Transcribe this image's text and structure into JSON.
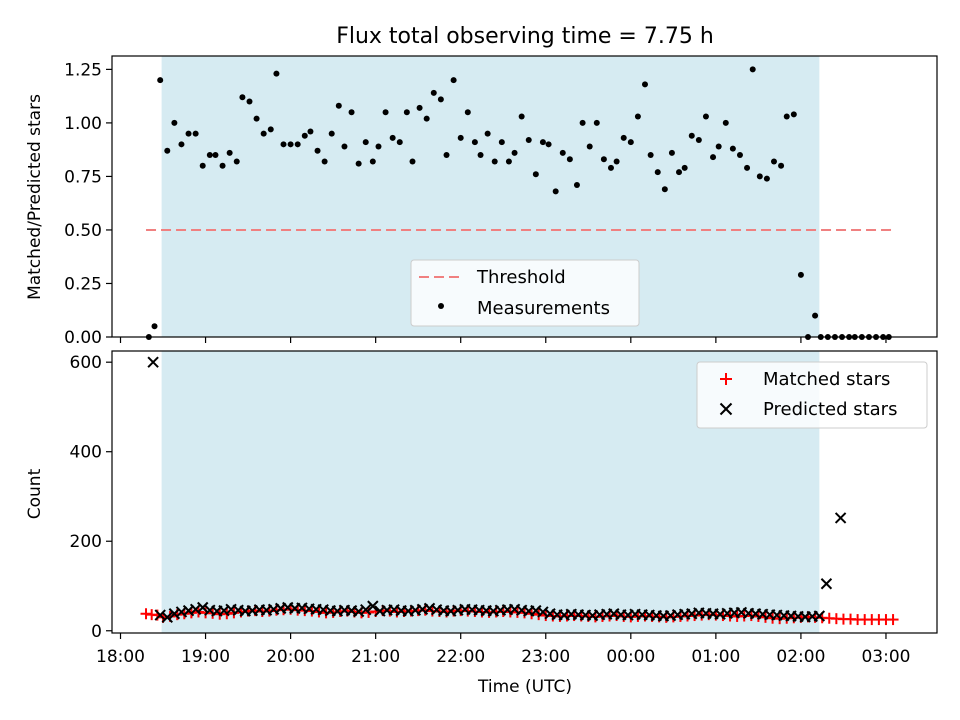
{
  "title": "Flux total observing time = 7.75 h",
  "colors": {
    "shade": "#add8e6",
    "threshold": "#f08080",
    "points": "#000000",
    "matched": "#ff0000",
    "predicted": "#000000"
  },
  "chart_data": [
    {
      "type": "scatter",
      "id": "ratio",
      "ylabel": "Matched/Predicted stars",
      "xlabel": "",
      "ylim": [
        0,
        1.3125
      ],
      "xlim_hours": [
        17.9,
        27.6
      ],
      "yticks": [
        0,
        0.25,
        0.5,
        0.75,
        1.0,
        1.25
      ],
      "ytick_labels": [
        "0.00",
        "0.25",
        "0.50",
        "0.75",
        "1.00",
        "1.25"
      ],
      "grid": false,
      "shaded_span": {
        "start": "18:29",
        "end": "02:13"
      },
      "threshold": {
        "label": "Threshold",
        "value": 0.5,
        "x_start": "18:18",
        "x_end": "03:06"
      },
      "legend": {
        "position": "lower-center",
        "entries": [
          "Threshold",
          "Measurements"
        ]
      },
      "series": [
        {
          "name": "Measurements",
          "x": [
            "18:20",
            "18:24",
            "18:28",
            "18:33",
            "18:38",
            "18:43",
            "18:48",
            "18:53",
            "18:58",
            "19:03",
            "19:07",
            "19:12",
            "19:17",
            "19:22",
            "19:26",
            "19:31",
            "19:36",
            "19:41",
            "19:46",
            "19:50",
            "19:55",
            "20:00",
            "20:05",
            "20:10",
            "20:14",
            "20:19",
            "20:24",
            "20:29",
            "20:34",
            "20:38",
            "20:43",
            "20:48",
            "20:53",
            "20:58",
            "21:02",
            "21:07",
            "21:12",
            "21:17",
            "21:22",
            "21:26",
            "21:31",
            "21:36",
            "21:41",
            "21:46",
            "21:50",
            "21:55",
            "22:00",
            "22:05",
            "22:10",
            "22:14",
            "22:19",
            "22:24",
            "22:29",
            "22:34",
            "22:38",
            "22:43",
            "22:48",
            "22:53",
            "22:58",
            "23:02",
            "23:07",
            "23:12",
            "23:17",
            "23:22",
            "23:26",
            "23:31",
            "23:36",
            "23:41",
            "23:46",
            "23:50",
            "23:55",
            "00:00",
            "00:05",
            "00:10",
            "00:14",
            "00:19",
            "00:24",
            "00:29",
            "00:34",
            "00:38",
            "00:43",
            "00:48",
            "00:53",
            "00:58",
            "01:02",
            "01:07",
            "01:12",
            "01:17",
            "01:22",
            "01:26",
            "01:31",
            "01:36",
            "01:41",
            "01:46",
            "01:50",
            "01:55",
            "02:00",
            "02:05",
            "02:10",
            "02:14",
            "02:19",
            "02:24",
            "02:29",
            "02:34",
            "02:38",
            "02:43",
            "02:48",
            "02:53",
            "02:58",
            "03:02"
          ],
          "y": [
            0.0,
            0.05,
            1.2,
            0.87,
            1.0,
            0.9,
            0.95,
            0.95,
            0.8,
            0.85,
            0.85,
            0.8,
            0.86,
            0.82,
            1.12,
            1.1,
            1.02,
            0.95,
            0.97,
            1.23,
            0.9,
            0.9,
            0.9,
            0.94,
            0.96,
            0.87,
            0.82,
            0.95,
            1.08,
            0.89,
            1.05,
            0.81,
            0.91,
            0.82,
            0.89,
            1.05,
            0.93,
            0.91,
            1.05,
            0.82,
            1.07,
            1.02,
            1.14,
            1.11,
            0.85,
            1.2,
            0.93,
            1.05,
            0.91,
            0.85,
            0.95,
            0.82,
            0.91,
            0.82,
            0.86,
            1.03,
            0.92,
            0.76,
            0.91,
            0.9,
            0.68,
            0.86,
            0.83,
            0.71,
            1.0,
            0.89,
            1.0,
            0.83,
            0.79,
            0.82,
            0.93,
            0.91,
            1.03,
            1.18,
            0.85,
            0.77,
            0.69,
            0.86,
            0.77,
            0.79,
            0.94,
            0.92,
            1.03,
            0.84,
            0.89,
            1.0,
            0.88,
            0.85,
            0.79,
            1.25,
            0.75,
            0.74,
            0.82,
            0.8,
            1.03,
            1.04,
            0.29,
            0.0,
            0.1,
            0.0,
            0.0,
            0.0,
            0.0,
            0.0,
            0.0,
            0.0,
            0.0,
            0.0,
            0.0,
            0.0
          ]
        }
      ]
    },
    {
      "type": "scatter",
      "id": "counts",
      "ylabel": "Count",
      "xlabel": "Time (UTC)",
      "ylim": [
        -5,
        625
      ],
      "xlim_hours": [
        17.9,
        27.6
      ],
      "yticks": [
        0,
        200,
        400,
        600
      ],
      "ytick_labels": [
        "0",
        "200",
        "400",
        "600"
      ],
      "xticks": [
        "18:00",
        "19:00",
        "20:00",
        "21:00",
        "22:00",
        "23:00",
        "00:00",
        "01:00",
        "02:00",
        "03:00"
      ],
      "grid": false,
      "shaded_span": {
        "start": "18:29",
        "end": "02:13"
      },
      "legend": {
        "position": "top-right",
        "entries": [
          "Matched stars",
          "Predicted stars"
        ]
      },
      "series": [
        {
          "name": "Matched stars",
          "marker": "plus",
          "x": [
            "18:18",
            "18:22",
            "18:26",
            "18:30",
            "18:35",
            "18:40",
            "18:45",
            "18:50",
            "18:55",
            "19:00",
            "19:05",
            "19:10",
            "19:15",
            "19:20",
            "19:25",
            "19:30",
            "19:35",
            "19:40",
            "19:45",
            "19:50",
            "19:55",
            "20:00",
            "20:05",
            "20:10",
            "20:15",
            "20:20",
            "20:25",
            "20:30",
            "20:35",
            "20:40",
            "20:45",
            "20:50",
            "20:55",
            "21:00",
            "21:05",
            "21:10",
            "21:15",
            "21:20",
            "21:25",
            "21:30",
            "21:35",
            "21:40",
            "21:45",
            "21:50",
            "21:55",
            "22:00",
            "22:05",
            "22:10",
            "22:15",
            "22:20",
            "22:25",
            "22:30",
            "22:35",
            "22:40",
            "22:45",
            "22:50",
            "22:55",
            "23:00",
            "23:05",
            "23:10",
            "23:15",
            "23:20",
            "23:25",
            "23:30",
            "23:35",
            "23:40",
            "23:45",
            "23:50",
            "23:55",
            "00:00",
            "00:05",
            "00:10",
            "00:15",
            "00:20",
            "00:25",
            "00:30",
            "00:35",
            "00:40",
            "00:45",
            "00:50",
            "00:55",
            "01:00",
            "01:05",
            "01:10",
            "01:15",
            "01:20",
            "01:25",
            "01:30",
            "01:35",
            "01:40",
            "01:45",
            "01:50",
            "01:55",
            "02:00",
            "02:05",
            "02:10",
            "02:15",
            "02:20",
            "02:25",
            "02:30",
            "02:35",
            "02:40",
            "02:45",
            "02:50",
            "02:55",
            "03:00",
            "03:05"
          ],
          "y": [
            38,
            36,
            35,
            30,
            32,
            36,
            38,
            40,
            42,
            40,
            39,
            37,
            38,
            40,
            42,
            44,
            45,
            43,
            44,
            46,
            47,
            48,
            46,
            45,
            44,
            42,
            40,
            41,
            43,
            44,
            42,
            40,
            41,
            43,
            45,
            44,
            42,
            43,
            44,
            45,
            46,
            44,
            43,
            42,
            44,
            45,
            44,
            43,
            42,
            41,
            42,
            43,
            42,
            41,
            40,
            38,
            36,
            34,
            33,
            32,
            33,
            34,
            33,
            32,
            31,
            32,
            33,
            34,
            32,
            31,
            32,
            33,
            32,
            31,
            30,
            31,
            32,
            33,
            34,
            35,
            36,
            35,
            34,
            33,
            32,
            33,
            34,
            32,
            30,
            28,
            27,
            28,
            29,
            30,
            31,
            30,
            29,
            28,
            27,
            26,
            26,
            25,
            25,
            25,
            25,
            25,
            25
          ]
        },
        {
          "name": "Predicted stars",
          "marker": "x",
          "x": [
            "18:23",
            "18:28",
            "18:33",
            "18:38",
            "18:43",
            "18:48",
            "18:53",
            "18:58",
            "19:03",
            "19:08",
            "19:13",
            "19:18",
            "19:23",
            "19:28",
            "19:33",
            "19:38",
            "19:43",
            "19:48",
            "19:53",
            "19:58",
            "20:03",
            "20:08",
            "20:13",
            "20:18",
            "20:23",
            "20:28",
            "20:33",
            "20:38",
            "20:43",
            "20:48",
            "20:53",
            "20:58",
            "21:03",
            "21:08",
            "21:13",
            "21:18",
            "21:23",
            "21:28",
            "21:33",
            "21:38",
            "21:43",
            "21:48",
            "21:53",
            "21:58",
            "22:03",
            "22:08",
            "22:13",
            "22:18",
            "22:23",
            "22:28",
            "22:33",
            "22:38",
            "22:43",
            "22:48",
            "22:53",
            "22:58",
            "23:03",
            "23:08",
            "23:13",
            "23:18",
            "23:23",
            "23:28",
            "23:33",
            "23:38",
            "23:43",
            "23:48",
            "23:53",
            "23:58",
            "00:03",
            "00:08",
            "00:13",
            "00:18",
            "00:23",
            "00:28",
            "00:33",
            "00:38",
            "00:43",
            "00:48",
            "00:53",
            "00:58",
            "01:03",
            "01:08",
            "01:13",
            "01:18",
            "01:23",
            "01:28",
            "01:33",
            "01:38",
            "01:43",
            "01:48",
            "01:53",
            "01:58",
            "02:03",
            "02:08",
            "02:13",
            "02:18",
            "02:28"
          ],
          "y": [
            600,
            35,
            30,
            38,
            42,
            45,
            48,
            52,
            46,
            44,
            45,
            48,
            46,
            44,
            45,
            47,
            46,
            48,
            50,
            52,
            50,
            51,
            49,
            48,
            47,
            45,
            44,
            46,
            45,
            43,
            47,
            55,
            44,
            46,
            47,
            45,
            44,
            46,
            48,
            50,
            47,
            45,
            44,
            46,
            48,
            47,
            46,
            45,
            44,
            46,
            47,
            48,
            46,
            44,
            45,
            42,
            38,
            36,
            35,
            37,
            36,
            35,
            34,
            36,
            37,
            38,
            36,
            35,
            37,
            36,
            35,
            34,
            33,
            34,
            36,
            37,
            38,
            40,
            39,
            38,
            37,
            39,
            40,
            41,
            39,
            38,
            37,
            36,
            35,
            34,
            33,
            32,
            31,
            32,
            33,
            105,
            252
          ]
        }
      ]
    }
  ]
}
